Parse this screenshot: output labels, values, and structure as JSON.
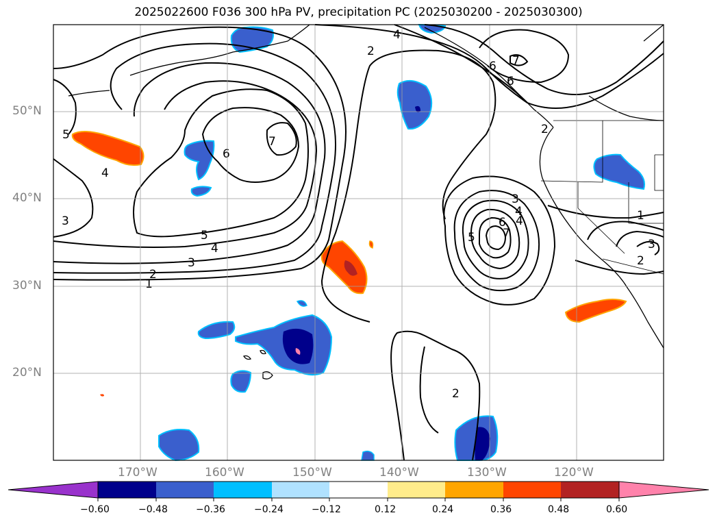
{
  "title": "2025022600 F036 300 hPa PV, precipitation PC (2025030200 - 2025030300)",
  "map": {
    "lat_labels": [
      "50°N",
      "40°N",
      "30°N",
      "20°N"
    ],
    "lon_labels": [
      "170°W",
      "160°W",
      "150°W",
      "140°W",
      "130°W",
      "120°W"
    ],
    "contour_labels": [
      "5",
      "4",
      "3",
      "6",
      "7",
      "5",
      "4",
      "3",
      "2",
      "1",
      "2",
      "4",
      "6",
      "2",
      "3",
      "4",
      "5",
      "6",
      "7",
      "1",
      "2",
      "3",
      "2",
      "6",
      "7",
      "4"
    ]
  },
  "colorbar": {
    "ticks": [
      "−0.60",
      "−0.48",
      "−0.36",
      "−0.24",
      "−0.12",
      "0.12",
      "0.24",
      "0.36",
      "0.48",
      "0.60"
    ],
    "colors": [
      "#9932cc",
      "#00008b",
      "#3a5fcd",
      "#00bfff",
      "#b0e2ff",
      "#ffffff",
      "#ffec8b",
      "#ffa500",
      "#ff4500",
      "#b22222",
      "#ff82ab"
    ]
  }
}
